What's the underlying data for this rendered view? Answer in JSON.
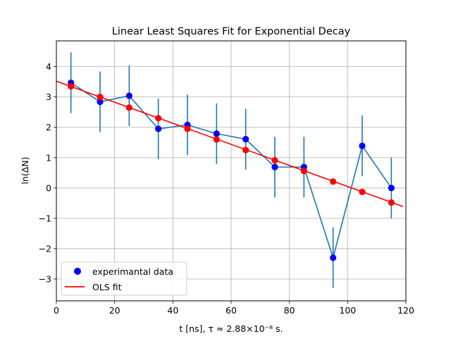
{
  "chart_data": {
    "type": "scatter",
    "title": "Linear Least Squares Fit for Exponential Decay",
    "xlabel": "t [ns], τ ≈  2.88×10⁻⁸ s.",
    "ylabel": "ln(ΔN)",
    "xlim": [
      0,
      120
    ],
    "ylim": [
      -3.72,
      4.85
    ],
    "x_ticks": [
      0,
      20,
      40,
      60,
      80,
      100,
      120
    ],
    "y_ticks": [
      -3,
      -2,
      -1,
      0,
      1,
      2,
      3,
      4
    ],
    "x_tick_labels": [
      "0",
      "20",
      "40",
      "60",
      "80",
      "100",
      "120"
    ],
    "y_tick_labels": [
      "−3",
      "−2",
      "−1",
      "0",
      "1",
      "2",
      "3",
      "4"
    ],
    "grid": true,
    "legend_position": "lower-left",
    "series": [
      {
        "name": "experimantal data",
        "kind": "errorbar",
        "color": "#0000ff",
        "line_color": "#1f77b4",
        "x": [
          5,
          15,
          25,
          35,
          45,
          55,
          65,
          75,
          85,
          95,
          105,
          115
        ],
        "y": [
          3.47,
          2.84,
          3.04,
          1.95,
          2.08,
          1.79,
          1.61,
          0.69,
          0.69,
          -2.3,
          1.39,
          0.0
        ],
        "yerr": [
          1.0,
          1.0,
          1.0,
          1.0,
          1.0,
          1.0,
          1.0,
          1.0,
          1.0,
          1.0,
          1.0,
          1.0
        ]
      },
      {
        "name": "OLS fit",
        "kind": "line",
        "color": "#ff0000",
        "x": [
          5,
          15,
          25,
          35,
          45,
          55,
          65,
          75,
          85,
          95,
          105,
          115
        ],
        "y": [
          3.35,
          3.0,
          2.65,
          2.3,
          1.95,
          1.6,
          1.25,
          0.91,
          0.56,
          0.21,
          -0.13,
          -0.48
        ],
        "line_x": [
          0,
          119
        ],
        "line_y": [
          3.52,
          -0.61
        ]
      }
    ]
  }
}
